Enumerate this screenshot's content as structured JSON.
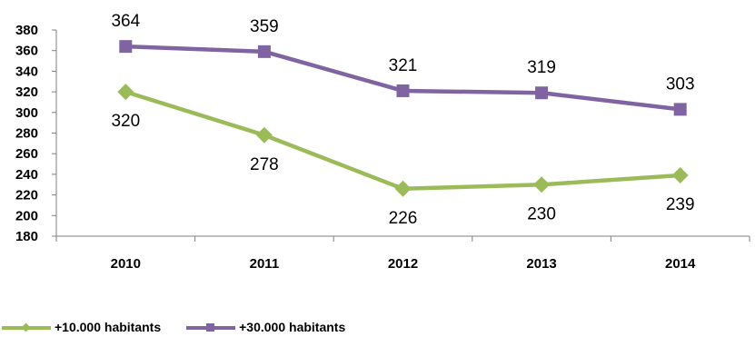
{
  "chart_data": {
    "type": "line",
    "categories": [
      "2010",
      "2011",
      "2012",
      "2013",
      "2014"
    ],
    "series": [
      {
        "name": "+10.000 habitants",
        "values": [
          320,
          278,
          226,
          230,
          239
        ],
        "color": "#9BBB59",
        "marker": "diamond",
        "label_position": "below"
      },
      {
        "name": "+30.000 habitants",
        "values": [
          364,
          359,
          321,
          319,
          303
        ],
        "color": "#8064A2",
        "marker": "square",
        "label_position": "above"
      }
    ],
    "ylim": [
      180,
      380
    ],
    "yticks": [
      180,
      200,
      220,
      240,
      260,
      280,
      300,
      320,
      340,
      360,
      380
    ],
    "grid": false,
    "legend_position": "bottom-left",
    "title": "",
    "xlabel": "",
    "ylabel": ""
  },
  "legend": {
    "items": [
      {
        "label": "+10.000 habitants",
        "color": "#9BBB59",
        "marker": "diamond"
      },
      {
        "label": "+30.000 habitants",
        "color": "#8064A2",
        "marker": "square"
      }
    ]
  }
}
